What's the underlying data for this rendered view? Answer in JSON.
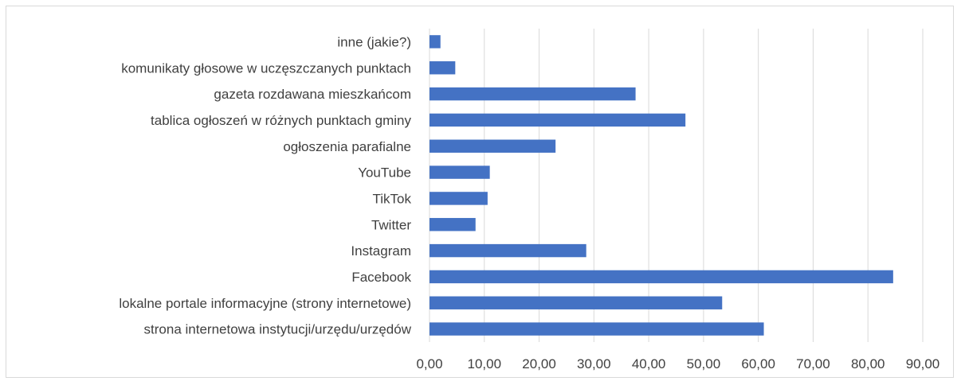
{
  "chart_data": {
    "type": "bar",
    "orientation": "horizontal",
    "categories": [
      "strona internetowa instytucji/urzędu/urzędów",
      "lokalne portale informacyjne (strony internetowe)",
      "Facebook",
      "Instagram",
      "Twitter",
      "TikTok",
      "YouTube",
      "ogłoszenia parafialne",
      "tablica ogłoszeń w różnych punktach gminy",
      "gazeta rozdawana mieszkańcom",
      "komunikaty głosowe w uczęszczanych punktach",
      "inne (jakie?)"
    ],
    "values": [
      61.0,
      53.4,
      84.6,
      28.6,
      8.4,
      10.6,
      11.0,
      23.0,
      46.7,
      37.6,
      4.7,
      2.0
    ],
    "xlim": [
      0,
      90
    ],
    "xticks": [
      "0,00",
      "10,00",
      "20,00",
      "30,00",
      "40,00",
      "50,00",
      "60,00",
      "70,00",
      "80,00",
      "90,00"
    ],
    "grid": true,
    "legend": "none",
    "title": "",
    "xlabel": "",
    "ylabel": "",
    "colors": {
      "bar": "#4472c4",
      "grid": "#d9d9d9",
      "text": "#404040"
    }
  }
}
